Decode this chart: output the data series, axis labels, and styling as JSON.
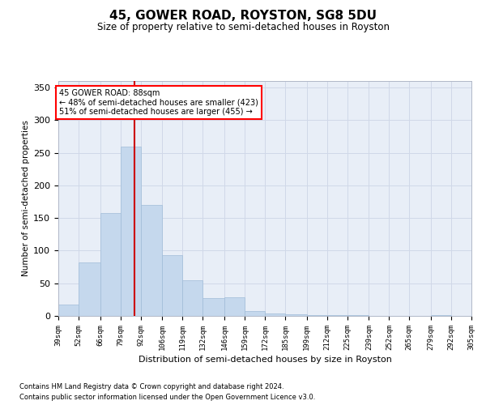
{
  "title": "45, GOWER ROAD, ROYSTON, SG8 5DU",
  "subtitle": "Size of property relative to semi-detached houses in Royston",
  "xlabel": "Distribution of semi-detached houses by size in Royston",
  "ylabel": "Number of semi-detached properties",
  "footnote1": "Contains HM Land Registry data © Crown copyright and database right 2024.",
  "footnote2": "Contains public sector information licensed under the Open Government Licence v3.0.",
  "annotation_line1": "45 GOWER ROAD: 88sqm",
  "annotation_line2": "← 48% of semi-detached houses are smaller (423)",
  "annotation_line3": "51% of semi-detached houses are larger (455) →",
  "property_size": 88,
  "bar_color": "#c5d8ed",
  "bar_edge_color": "#a0bcd8",
  "vline_color": "#cc0000",
  "vline_x": 88,
  "grid_color": "#d0d8e8",
  "bg_color": "#e8eef7",
  "bin_edges": [
    39,
    52,
    66,
    79,
    92,
    106,
    119,
    132,
    146,
    159,
    172,
    185,
    199,
    212,
    225,
    239,
    252,
    265,
    279,
    292,
    305
  ],
  "bar_heights": [
    17,
    82,
    158,
    260,
    170,
    93,
    55,
    27,
    28,
    7,
    4,
    3,
    1,
    1,
    1,
    0,
    0,
    0,
    1,
    0
  ],
  "ylim": [
    0,
    360
  ],
  "yticks": [
    0,
    50,
    100,
    150,
    200,
    250,
    300,
    350
  ]
}
